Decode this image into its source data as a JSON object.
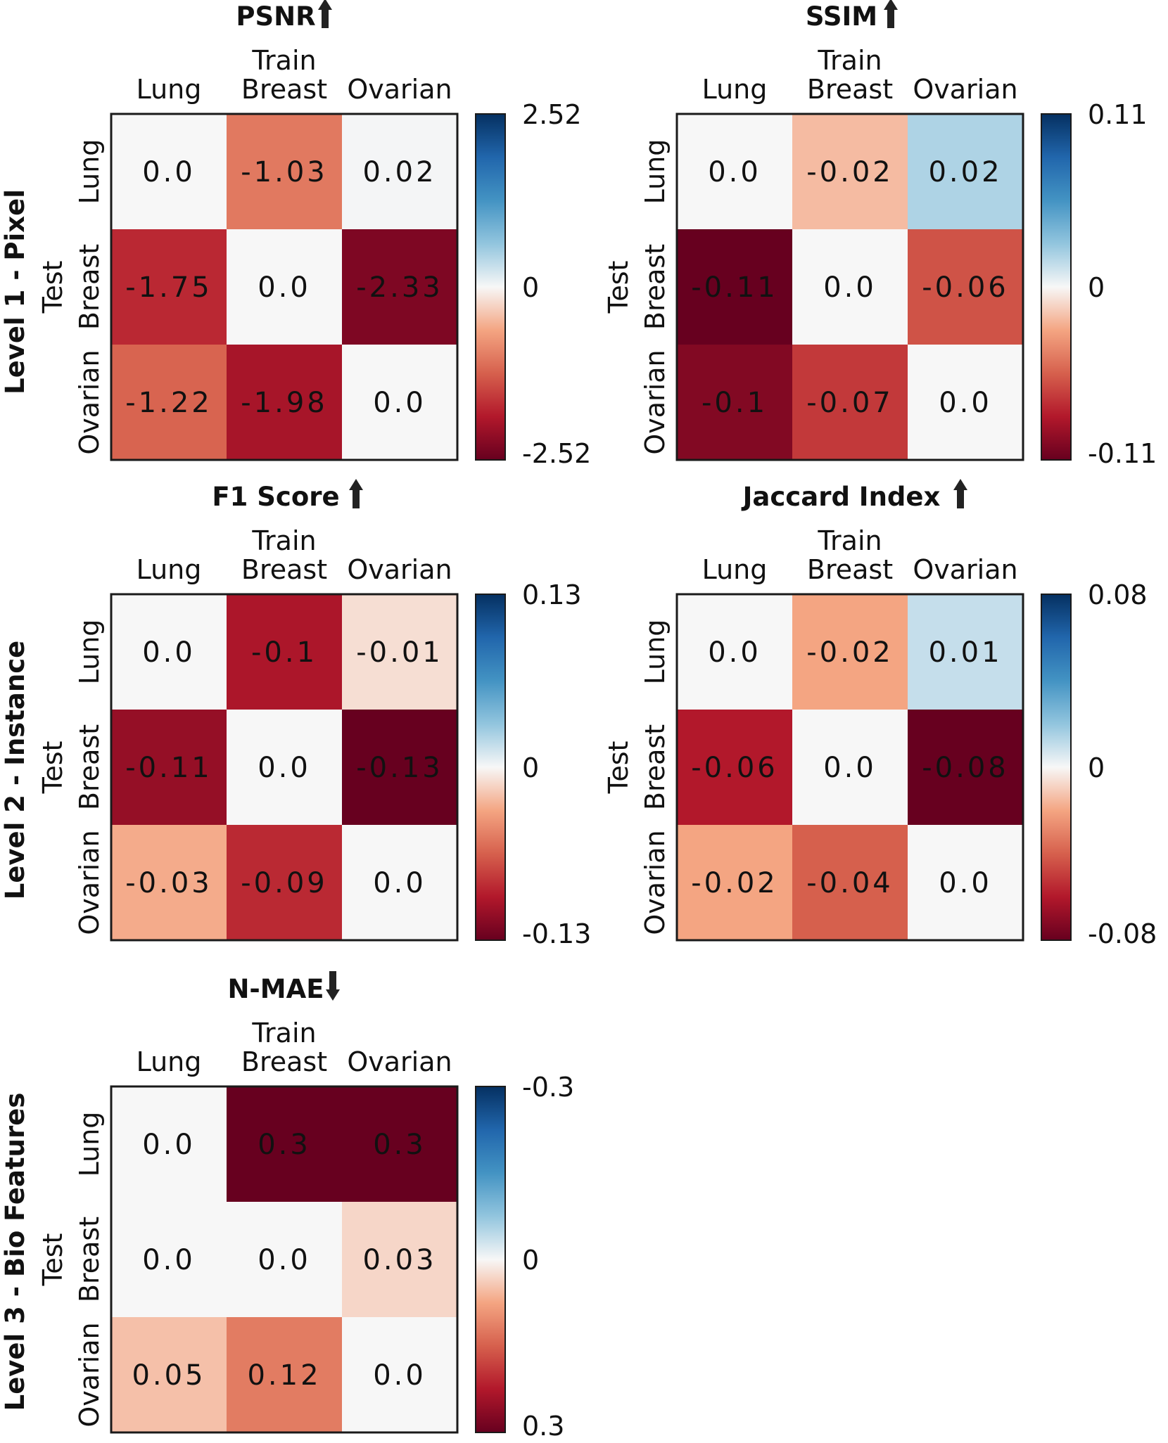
{
  "row_labels": [
    "Level 1 - Pixel",
    "Level 2 - Instance",
    "Level 3 - Bio  Features"
  ],
  "colors": {
    "min": "#67001f",
    "mid": "#f7f7f7",
    "max": "#053061",
    "text": "#111111"
  },
  "chart_data": [
    {
      "type": "heatmap",
      "title": "PSNR",
      "direction": "up",
      "xlabel": "Train",
      "ylabel": "Test",
      "x": [
        "Lung",
        "Breast",
        "Ovarian"
      ],
      "y": [
        "Lung",
        "Breast",
        "Ovarian"
      ],
      "values": [
        [
          0.0,
          -1.03,
          0.02
        ],
        [
          -1.75,
          0.0,
          -2.33
        ],
        [
          -1.22,
          -1.98,
          0.0
        ]
      ],
      "labels": [
        [
          "0.0",
          "-1.03",
          "0.02"
        ],
        [
          "-1.75",
          "0.0",
          "-2.33"
        ],
        [
          "-1.22",
          "-1.98",
          "0.0"
        ]
      ],
      "colorbar": {
        "vmin": -2.52,
        "vmax": 2.52,
        "reversed": false,
        "tick_top": "2.52",
        "tick_mid": "0",
        "tick_bottom": "-2.52"
      }
    },
    {
      "type": "heatmap",
      "title": "SSIM",
      "direction": "up",
      "xlabel": "Train",
      "ylabel": "Test",
      "x": [
        "Lung",
        "Breast",
        "Ovarian"
      ],
      "y": [
        "Lung",
        "Breast",
        "Ovarian"
      ],
      "values": [
        [
          0.0,
          -0.02,
          0.02
        ],
        [
          -0.11,
          0.0,
          -0.06
        ],
        [
          -0.1,
          -0.07,
          0.0
        ]
      ],
      "labels": [
        [
          "0.0",
          "-0.02",
          "0.02"
        ],
        [
          "-0.11",
          "0.0",
          "-0.06"
        ],
        [
          "-0.1",
          "-0.07",
          "0.0"
        ]
      ],
      "colorbar": {
        "vmin": -0.11,
        "vmax": 0.11,
        "reversed": false,
        "tick_top": "0.11",
        "tick_mid": "0",
        "tick_bottom": "-0.11"
      }
    },
    {
      "type": "heatmap",
      "title": "F1 Score",
      "direction": "up",
      "xlabel": "Train",
      "ylabel": "Test",
      "x": [
        "Lung",
        "Breast",
        "Ovarian"
      ],
      "y": [
        "Lung",
        "Breast",
        "Ovarian"
      ],
      "values": [
        [
          0.0,
          -0.1,
          -0.01
        ],
        [
          -0.11,
          0.0,
          -0.13
        ],
        [
          -0.03,
          -0.09,
          0.0
        ]
      ],
      "labels": [
        [
          "0.0",
          "-0.1",
          "-0.01"
        ],
        [
          "-0.11",
          "0.0",
          "-0.13"
        ],
        [
          "-0.03",
          "-0.09",
          "0.0"
        ]
      ],
      "colorbar": {
        "vmin": -0.13,
        "vmax": 0.13,
        "reversed": false,
        "tick_top": "0.13",
        "tick_mid": "0",
        "tick_bottom": "-0.13"
      }
    },
    {
      "type": "heatmap",
      "title": "Jaccard Index",
      "direction": "up",
      "xlabel": "Train",
      "ylabel": "Test",
      "x": [
        "Lung",
        "Breast",
        "Ovarian"
      ],
      "y": [
        "Lung",
        "Breast",
        "Ovarian"
      ],
      "values": [
        [
          0.0,
          -0.02,
          0.01
        ],
        [
          -0.06,
          0.0,
          -0.08
        ],
        [
          -0.02,
          -0.04,
          0.0
        ]
      ],
      "labels": [
        [
          "0.0",
          "-0.02",
          "0.01"
        ],
        [
          "-0.06",
          "0.0",
          "-0.08"
        ],
        [
          "-0.02",
          "-0.04",
          "0.0"
        ]
      ],
      "colorbar": {
        "vmin": -0.08,
        "vmax": 0.08,
        "reversed": false,
        "tick_top": "0.08",
        "tick_mid": "0",
        "tick_bottom": "-0.08"
      }
    },
    {
      "type": "heatmap",
      "title": "N-MAE",
      "direction": "down",
      "xlabel": "Train",
      "ylabel": "Test",
      "x": [
        "Lung",
        "Breast",
        "Ovarian"
      ],
      "y": [
        "Lung",
        "Breast",
        "Ovarian"
      ],
      "values": [
        [
          0.0,
          0.3,
          0.3
        ],
        [
          0.0,
          0.0,
          0.03
        ],
        [
          0.05,
          0.12,
          0.0
        ]
      ],
      "labels": [
        [
          "0.0",
          "0.3",
          "0.3"
        ],
        [
          "0.0",
          "0.0",
          "0.03"
        ],
        [
          "0.05",
          "0.12",
          "0.0"
        ]
      ],
      "colorbar": {
        "vmin": -0.3,
        "vmax": 0.3,
        "reversed": true,
        "tick_top": "-0.3",
        "tick_mid": "0",
        "tick_bottom": "0.3"
      }
    }
  ]
}
